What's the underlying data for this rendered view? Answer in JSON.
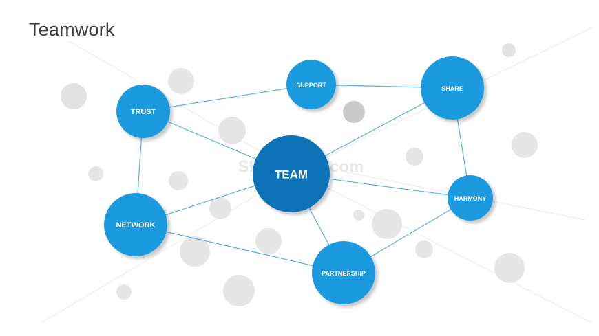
{
  "slide": {
    "title": "Teamwork",
    "watermark": "SlideModel.com"
  },
  "colors": {
    "node_fill": "#1a9ae0",
    "center_fill": "#0b72b6",
    "link_stroke": "#55aee0",
    "bubble_fill": "#e2e2e2",
    "bubble_dark_fill": "#c9c9c9"
  },
  "nodes": [
    {
      "id": "team",
      "label": "TEAM",
      "center": true
    },
    {
      "id": "trust",
      "label": "TRUST"
    },
    {
      "id": "support",
      "label": "SUPPORT"
    },
    {
      "id": "share",
      "label": "SHARE"
    },
    {
      "id": "harmony",
      "label": "HARMONY"
    },
    {
      "id": "partnership",
      "label": "PARTNERSHIP"
    },
    {
      "id": "network",
      "label": "NETWORK"
    }
  ],
  "links": [
    [
      "trust",
      "support"
    ],
    [
      "support",
      "share"
    ],
    [
      "trust",
      "team"
    ],
    [
      "share",
      "team"
    ],
    [
      "share",
      "harmony"
    ],
    [
      "team",
      "harmony"
    ],
    [
      "team",
      "partnership"
    ],
    [
      "harmony",
      "partnership"
    ],
    [
      "trust",
      "network"
    ],
    [
      "network",
      "team"
    ],
    [
      "network",
      "partnership"
    ]
  ]
}
